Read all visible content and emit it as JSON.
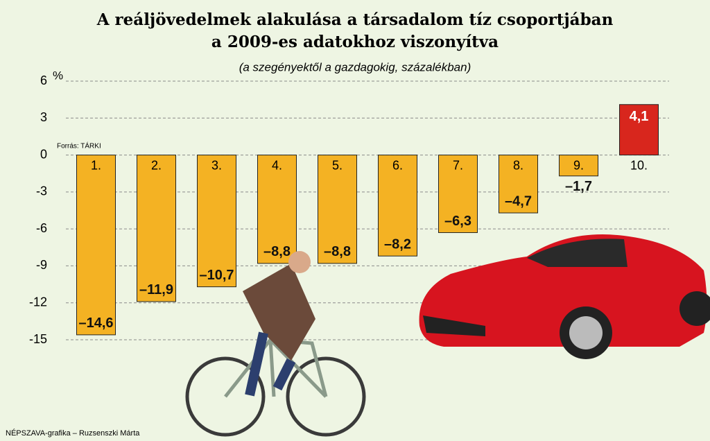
{
  "chart_data": {
    "type": "bar",
    "title_lines": [
      "A reáljövedelmek alakulása a társadalom tíz csoportjában",
      "a 2009-es adatokhoz viszonyítva"
    ],
    "subtitle": "(a szegényektől a gazdagokig, százalékban)",
    "y_unit": "%",
    "source": "Forrás: TÁRKI",
    "credit": "NÉPSZAVA-grafika – Ruzsenszki Márta",
    "categories": [
      "1.",
      "2.",
      "3.",
      "4.",
      "5.",
      "6.",
      "7.",
      "8.",
      "9.",
      "10."
    ],
    "values": [
      -14.6,
      -11.9,
      -10.7,
      -8.8,
      -8.8,
      -8.2,
      -6.3,
      -4.7,
      -1.7,
      4.1
    ],
    "value_labels": [
      "–14,6",
      "–11,9",
      "–10,7",
      "–8,8",
      "–8,8",
      "–8,2",
      "–6,3",
      "–4,7",
      "–1,7",
      "4,1"
    ],
    "colors": [
      "#f4b223",
      "#f4b223",
      "#f4b223",
      "#f4b223",
      "#f4b223",
      "#f4b223",
      "#f4b223",
      "#f4b223",
      "#f4b223",
      "#d8261d"
    ],
    "ylim": [
      -15,
      6
    ],
    "yticks": [
      6,
      3,
      0,
      -3,
      -6,
      -9,
      -12,
      -15
    ],
    "grid": true
  }
}
